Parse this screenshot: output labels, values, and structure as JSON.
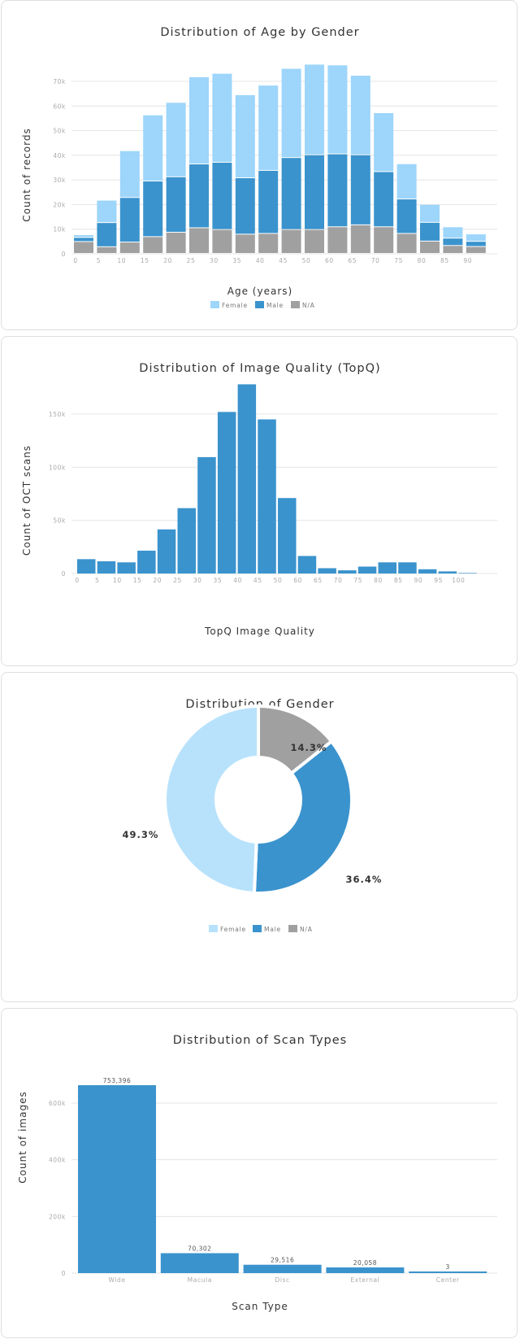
{
  "colors": {
    "female": "#9dd5fb",
    "male": "#3a93cd",
    "na": "#a0a0a0",
    "female_pie": "#b8e2fc"
  },
  "chart_data": [
    {
      "type": "bar",
      "stacked": true,
      "title": "Distribution of Age by Gender",
      "xlabel": "Age (years)",
      "ylabel": "Count of records",
      "ylim": [
        0,
        77000
      ],
      "yticks": [
        0,
        10000,
        20000,
        30000,
        40000,
        50000,
        60000,
        70000
      ],
      "ytick_labels": [
        "0",
        "10k",
        "20k",
        "30k",
        "40k",
        "50k",
        "60k",
        "70k"
      ],
      "categories": [
        "0",
        "5",
        "10",
        "15",
        "20",
        "25",
        "30",
        "35",
        "40",
        "45",
        "50",
        "60",
        "65",
        "70",
        "75",
        "80",
        "85",
        "90"
      ],
      "series": [
        {
          "name": "N/A",
          "color_key": "na",
          "values": [
            4800,
            2700,
            4600,
            6800,
            8600,
            10400,
            9700,
            7800,
            8100,
            9700,
            9700,
            10800,
            11600,
            10800,
            8100,
            5000,
            3200,
            2800
          ]
        },
        {
          "name": "Male",
          "color_key": "male",
          "values": [
            1700,
            9800,
            18100,
            22600,
            22500,
            25900,
            27300,
            22900,
            25600,
            29200,
            30300,
            29600,
            28400,
            22400,
            14000,
            7600,
            3000,
            2100
          ]
        },
        {
          "name": "Female",
          "color_key": "female",
          "values": [
            1100,
            9100,
            19000,
            26800,
            30200,
            35400,
            36100,
            33700,
            34600,
            36200,
            36800,
            36100,
            32300,
            23900,
            14300,
            7300,
            4600,
            3000
          ]
        }
      ],
      "legend": [
        "Female",
        "Male",
        "N/A"
      ],
      "legend_position": "bottom",
      "grid": true
    },
    {
      "type": "bar",
      "title": "Distribution of Image Quality (TopQ)",
      "xlabel": "TopQ Image Quality",
      "ylabel": "Count of OCT scans",
      "ylim": [
        0,
        185000
      ],
      "yticks": [
        0,
        50000,
        100000,
        150000
      ],
      "ytick_labels": [
        "0",
        "50k",
        "100k",
        "150k"
      ],
      "categories": [
        "0",
        "5",
        "10",
        "15",
        "20",
        "25",
        "30",
        "35",
        "40",
        "45",
        "50",
        "60",
        "65",
        "70",
        "75",
        "80",
        "85",
        "90",
        "95",
        "100"
      ],
      "values": [
        13500,
        11500,
        10500,
        21500,
        41500,
        61500,
        109500,
        152000,
        178000,
        145000,
        71000,
        16500,
        5000,
        3000,
        6500,
        10500,
        10500,
        4000,
        2000,
        500
      ],
      "grid": true
    },
    {
      "type": "pie",
      "donut": true,
      "title": "Distribution of Gender",
      "labels": [
        "N/A",
        "Male",
        "Female"
      ],
      "values": [
        14.3,
        36.4,
        49.3
      ],
      "value_labels": [
        "14.3%",
        "36.4%",
        "49.3%"
      ],
      "legend": [
        "Female",
        "Male",
        "N/A"
      ],
      "legend_position": "bottom"
    },
    {
      "type": "bar",
      "title": "Distribution of Scan Types",
      "xlabel": "Scan Type",
      "ylabel": "Count of images",
      "ylim": [
        0,
        760000
      ],
      "yticks": [
        0,
        200000,
        400000,
        600000
      ],
      "ytick_labels": [
        "0",
        "200k",
        "400k",
        "600k"
      ],
      "categories": [
        "Wide",
        "Macula",
        "Disc",
        "External",
        "Center"
      ],
      "values": [
        753396,
        70302,
        29516,
        20058,
        3
      ],
      "value_labels": [
        "753,396",
        "70,302",
        "29,516",
        "20,058",
        "3"
      ],
      "grid": true
    }
  ]
}
